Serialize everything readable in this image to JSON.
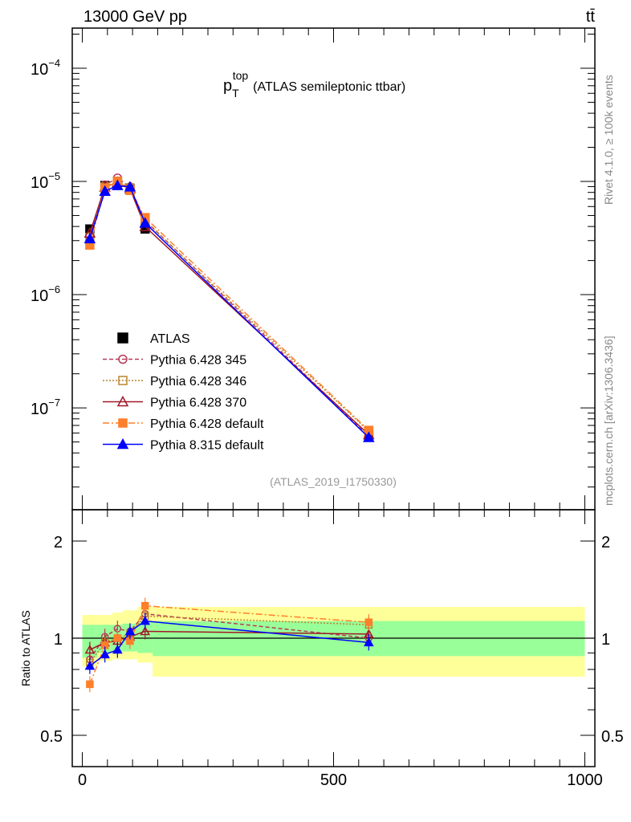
{
  "header": {
    "energy_label": "13000 GeV pp",
    "process_label": "tt̄"
  },
  "side_labels": {
    "rivet": "Rivet 4.1.0, ≥ 100k events",
    "mcplots": "mcplots.cern.ch [arXiv:1306.3436]"
  },
  "analysis_label": "(ATLAS_2019_I1750330)",
  "chart_data": [
    {
      "type": "line",
      "title_main": "p",
      "title_sub": "T",
      "title_sup": "top",
      "title_rest": "(ATLAS semileptonic ttbar)",
      "xlabel": "",
      "ylabel": "",
      "xlim": [
        -20,
        1020
      ],
      "ylim": [
        1.26e-08,
        0.000226
      ],
      "yscale": "log",
      "ytick_labels": [
        {
          "v": 0.0001,
          "m": "10",
          "e": "−4"
        },
        {
          "v": 1e-05,
          "m": "10",
          "e": "−5"
        },
        {
          "v": 1e-06,
          "m": "10",
          "e": "−6"
        },
        {
          "v": 1e-07,
          "m": "10",
          "e": "−7"
        }
      ],
      "bin_edges": [
        0,
        30,
        60,
        80,
        110,
        140,
        1000
      ],
      "x": [
        15,
        45,
        70,
        95,
        125,
        570
      ],
      "legend_position": "bottom-left",
      "series": [
        {
          "name": "ATLAS",
          "color": "#000000",
          "marker": "square-filled",
          "dash": "",
          "values": [
            3.8e-06,
            9.2e-06,
            1e-05,
            8.5e-06,
            3.8e-06,
            5.65e-08
          ]
        },
        {
          "name": "Pythia 6.428 345",
          "color": "#b83a5a",
          "marker": "circle-open",
          "dash": "5,3",
          "values": [
            3.27e-06,
            9.29e-06,
            1.07e-05,
            8.93e-06,
            4.52e-06,
            5.65e-08
          ]
        },
        {
          "name": "Pythia 6.428 346",
          "color": "#b8862e",
          "marker": "square-open",
          "dash": "2,2",
          "values": [
            3.2e-06,
            8.92e-06,
            1e-05,
            8.76e-06,
            4.45e-06,
            6.2e-08
          ]
        },
        {
          "name": "Pythia 6.428 370",
          "color": "#a01828",
          "marker": "triangle-open",
          "dash": "",
          "values": [
            3.5e-06,
            8.92e-06,
            9.8e-06,
            8.6e-06,
            3.99e-06,
            5.8e-08
          ]
        },
        {
          "name": "Pythia 6.428 default",
          "color": "#ff7f2a",
          "marker": "square-filled",
          "dash": "8,3,2,3",
          "values": [
            2.74e-06,
            8.74e-06,
            1e-05,
            8.33e-06,
            4.79e-06,
            6.33e-08
          ]
        },
        {
          "name": "Pythia 8.315 default",
          "color": "#0000ff",
          "marker": "triangle-filled",
          "dash": "",
          "values": [
            3.12e-06,
            8.19e-06,
            9.2e-06,
            8.93e-06,
            4.29e-06,
            5.48e-08
          ]
        }
      ]
    },
    {
      "type": "line",
      "ylabel": "Ratio to ATLAS",
      "xlim": [
        -20,
        1020
      ],
      "ylim": [
        0.4,
        2.5
      ],
      "yscale": "log",
      "xtick_labels": [
        "0",
        "500",
        "1000"
      ],
      "ytick_labels": [
        "2",
        "1",
        "0.5"
      ],
      "band_yellow": {
        "color": "#ffff99",
        "lo": [
          0.82,
          0.85,
          0.86,
          0.86,
          0.84,
          0.76
        ],
        "hi": [
          1.18,
          1.18,
          1.2,
          1.22,
          1.25,
          1.25
        ]
      },
      "band_green": {
        "color": "#99ff99",
        "lo": [
          0.87,
          0.9,
          0.91,
          0.91,
          0.9,
          0.88
        ],
        "hi": [
          1.1,
          1.1,
          1.1,
          1.11,
          1.13,
          1.13
        ]
      },
      "series": [
        {
          "name": "Pythia 6.428 345",
          "values": [
            0.86,
            1.01,
            1.07,
            1.05,
            1.19,
            1.0
          ]
        },
        {
          "name": "Pythia 6.428 346",
          "values": [
            0.84,
            0.97,
            1.0,
            1.03,
            1.17,
            1.1
          ]
        },
        {
          "name": "Pythia 6.428 370",
          "values": [
            0.92,
            0.97,
            0.98,
            1.01,
            1.05,
            1.03
          ]
        },
        {
          "name": "Pythia 6.428 default",
          "values": [
            0.72,
            0.95,
            1.0,
            0.98,
            1.26,
            1.12
          ]
        },
        {
          "name": "Pythia 8.315 default",
          "values": [
            0.82,
            0.89,
            0.92,
            1.05,
            1.13,
            0.97
          ]
        }
      ]
    }
  ]
}
